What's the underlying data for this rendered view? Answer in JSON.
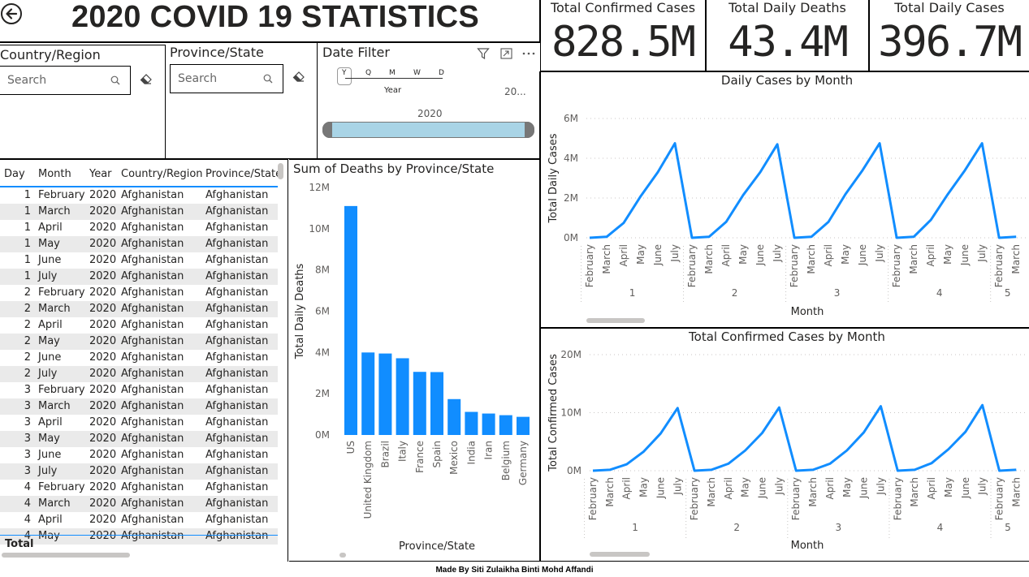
{
  "page": {
    "title": "2020 COVID 19 STATISTICS",
    "footer": "Made By Siti Zulaikha Binti Mohd Affandi"
  },
  "kpis": [
    {
      "label": "Total Confirmed Cases",
      "value": "828.5M"
    },
    {
      "label": "Total Daily Deaths",
      "value": "43.4M"
    },
    {
      "label": "Total Daily Cases",
      "value": "396.7M"
    }
  ],
  "slicers": {
    "country": {
      "title": "Country/Region",
      "placeholder": "Search"
    },
    "province": {
      "title": "Province/State",
      "placeholder": "Search"
    },
    "date": {
      "title": "Date Filter",
      "levels": [
        "Y",
        "Q",
        "M",
        "W",
        "D"
      ],
      "level_label": "Year",
      "range_end": "20...",
      "selected_year": "2020"
    }
  },
  "colors": {
    "accent": "#118dff",
    "slider_fill": "#a9d4e6",
    "alt_row": "#eaeaea"
  },
  "table": {
    "columns": [
      "Day",
      "Month",
      "Year",
      "Country/Region",
      "Province/State"
    ],
    "rows": [
      [
        "1",
        "February",
        "2020",
        "Afghanistan",
        "Afghanistan"
      ],
      [
        "1",
        "March",
        "2020",
        "Afghanistan",
        "Afghanistan"
      ],
      [
        "1",
        "April",
        "2020",
        "Afghanistan",
        "Afghanistan"
      ],
      [
        "1",
        "May",
        "2020",
        "Afghanistan",
        "Afghanistan"
      ],
      [
        "1",
        "June",
        "2020",
        "Afghanistan",
        "Afghanistan"
      ],
      [
        "1",
        "July",
        "2020",
        "Afghanistan",
        "Afghanistan"
      ],
      [
        "2",
        "February",
        "2020",
        "Afghanistan",
        "Afghanistan"
      ],
      [
        "2",
        "March",
        "2020",
        "Afghanistan",
        "Afghanistan"
      ],
      [
        "2",
        "April",
        "2020",
        "Afghanistan",
        "Afghanistan"
      ],
      [
        "2",
        "May",
        "2020",
        "Afghanistan",
        "Afghanistan"
      ],
      [
        "2",
        "June",
        "2020",
        "Afghanistan",
        "Afghanistan"
      ],
      [
        "2",
        "July",
        "2020",
        "Afghanistan",
        "Afghanistan"
      ],
      [
        "3",
        "February",
        "2020",
        "Afghanistan",
        "Afghanistan"
      ],
      [
        "3",
        "March",
        "2020",
        "Afghanistan",
        "Afghanistan"
      ],
      [
        "3",
        "April",
        "2020",
        "Afghanistan",
        "Afghanistan"
      ],
      [
        "3",
        "May",
        "2020",
        "Afghanistan",
        "Afghanistan"
      ],
      [
        "3",
        "June",
        "2020",
        "Afghanistan",
        "Afghanistan"
      ],
      [
        "3",
        "July",
        "2020",
        "Afghanistan",
        "Afghanistan"
      ],
      [
        "4",
        "February",
        "2020",
        "Afghanistan",
        "Afghanistan"
      ],
      [
        "4",
        "March",
        "2020",
        "Afghanistan",
        "Afghanistan"
      ],
      [
        "4",
        "April",
        "2020",
        "Afghanistan",
        "Afghanistan"
      ],
      [
        "4",
        "May",
        "2020",
        "Afghanistan",
        "Afghanistan"
      ]
    ],
    "total_label": "Total"
  },
  "chart_data": [
    {
      "type": "bar",
      "title": "Sum of Deaths by Province/State",
      "xlabel": "Province/State",
      "ylabel": "Total Daily Deaths",
      "categories": [
        "US",
        "United Kingdom",
        "Brazil",
        "Italy",
        "France",
        "Spain",
        "Mexico",
        "India",
        "Iran",
        "Belgium",
        "Germany"
      ],
      "values": [
        11100000,
        4000000,
        3950000,
        3720000,
        3060000,
        3050000,
        1740000,
        1120000,
        1040000,
        960000,
        880000
      ],
      "ylim": [
        0,
        12000000
      ],
      "yticks": [
        "0M",
        "2M",
        "4M",
        "6M",
        "8M",
        "10M",
        "12M"
      ]
    },
    {
      "type": "line",
      "title": "Daily Cases by Month",
      "xlabel": "Month",
      "ylabel": "Total Daily Cases",
      "groups": [
        "1",
        "2",
        "3",
        "4",
        "5"
      ],
      "categories": [
        "February",
        "March",
        "April",
        "May",
        "June",
        "July",
        "February",
        "March",
        "April",
        "May",
        "June",
        "July",
        "February",
        "March",
        "April",
        "May",
        "June",
        "July",
        "February",
        "March",
        "April",
        "May",
        "June",
        "July",
        "February",
        "March"
      ],
      "values": [
        0,
        50000,
        750000,
        2100000,
        3300000,
        4750000,
        0,
        50000,
        800000,
        2150000,
        3300000,
        4700000,
        0,
        50000,
        800000,
        2200000,
        3400000,
        4750000,
        0,
        50000,
        900000,
        2200000,
        3400000,
        4750000,
        0,
        50000
      ],
      "ylim": [
        0,
        6000000
      ],
      "yticks": [
        "0M",
        "2M",
        "4M",
        "6M"
      ]
    },
    {
      "type": "line",
      "title": "Total Confirmed Cases by Month",
      "xlabel": "Month",
      "ylabel": "Total Confirmed Cases",
      "groups": [
        "1",
        "2",
        "3",
        "4",
        "5"
      ],
      "categories": [
        "February",
        "March",
        "April",
        "May",
        "June",
        "July",
        "February",
        "March",
        "April",
        "May",
        "June",
        "July",
        "February",
        "March",
        "April",
        "May",
        "June",
        "July",
        "February",
        "March",
        "April",
        "May",
        "June",
        "July",
        "February",
        "March"
      ],
      "values": [
        0,
        150000,
        1100000,
        3300000,
        6400000,
        10800000,
        0,
        150000,
        1200000,
        3500000,
        6500000,
        10900000,
        0,
        150000,
        1200000,
        3500000,
        6600000,
        11100000,
        0,
        150000,
        1300000,
        3700000,
        6700000,
        11300000,
        0,
        150000
      ],
      "ylim": [
        0,
        20000000
      ],
      "yticks": [
        "0M",
        "10M",
        "20M"
      ]
    }
  ]
}
